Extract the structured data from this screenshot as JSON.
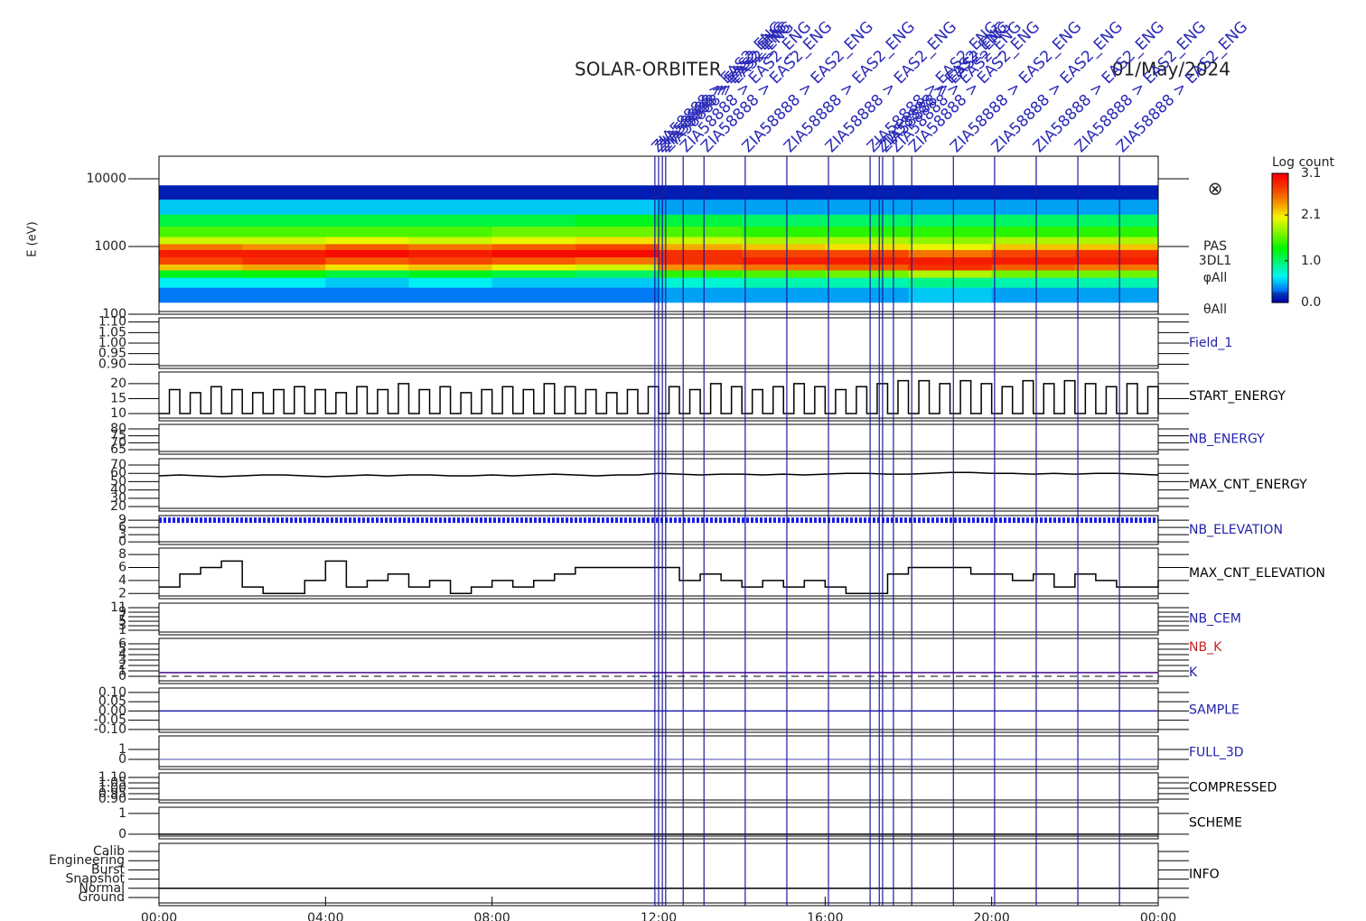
{
  "title": "SOLAR-ORBITER",
  "date": "01/May/2024",
  "events": [
    {
      "x": 11.91,
      "label": "ZIA58888 > EAS2_ENG"
    },
    {
      "x": 12.0,
      "label": "ZIA58888 > EAS2_ENG"
    },
    {
      "x": 12.09,
      "label": "ZIA58888 > EAS2_ENG"
    },
    {
      "x": 12.17,
      "label": "ZIA58888 > EAS2_ENG"
    },
    {
      "x": 12.59,
      "label": "ZIA58888 > EAS2_ENG"
    },
    {
      "x": 13.09,
      "label": "ZIA58888 > EAS2_ENG"
    },
    {
      "x": 14.08,
      "label": "ZIA58888 > EAS2_ENG"
    },
    {
      "x": 15.08,
      "label": "ZIA58888 > EAS2_ENG"
    },
    {
      "x": 16.08,
      "label": "ZIA58888 > EAS2_ENG"
    },
    {
      "x": 17.08,
      "label": "ZIA58888 > EAS2_ENG"
    },
    {
      "x": 17.3,
      "label": "ZIA58888 > EAS2_ENG"
    },
    {
      "x": 17.38,
      "label": "ZIA58888 > EAS2_ENG"
    },
    {
      "x": 17.64,
      "label": "ZIA58888 > EAS2_ENG"
    },
    {
      "x": 18.08,
      "label": "ZIA58888 > EAS2_ENG"
    },
    {
      "x": 19.08,
      "label": "ZIA58888 > EAS2_ENG"
    },
    {
      "x": 20.07,
      "label": "ZIA58888 > EAS2_ENG"
    },
    {
      "x": 21.07,
      "label": "ZIA58888 > EAS2_ENG"
    },
    {
      "x": 22.07,
      "label": "ZIA58888 > EAS2_ENG"
    },
    {
      "x": 23.07,
      "label": "ZIA58888 > EAS2_ENG"
    }
  ],
  "chart_data": [
    {
      "type": "spectrogram",
      "ylabel": "E (eV)",
      "log_y": true,
      "xlim": [
        0,
        24
      ],
      "ylim": [
        100,
        21544
      ],
      "yticks": [
        100,
        1000,
        10000
      ],
      "side_labels": [
        "⊗",
        "PAS",
        "3DL1",
        "φAll",
        "θAll"
      ],
      "colorbar": {
        "title": "Log count",
        "lim": [
          0,
          3.1
        ],
        "ticks": [
          {
            "value": 0,
            "label": "0.0"
          },
          {
            "value": 1,
            "label": "1.0"
          },
          2.1,
          3.1
        ]
      },
      "x": [
        0,
        2,
        4,
        6,
        8,
        10,
        12,
        14,
        16,
        18,
        20,
        22,
        24
      ],
      "y": [
        150,
        250,
        350,
        450,
        550,
        700,
        900,
        1100,
        1400,
        2000,
        3000,
        5000,
        8000
      ],
      "z": [
        [
          0.3,
          0.6,
          1.2,
          2.2,
          2.7,
          2.9,
          2.5,
          1.9,
          1.5,
          1.1,
          0.5,
          0.1
        ],
        [
          0.3,
          0.6,
          1.3,
          2.3,
          2.8,
          2.9,
          2.4,
          1.9,
          1.5,
          1.1,
          0.5,
          0.1
        ],
        [
          0.3,
          0.5,
          1.1,
          2.1,
          2.6,
          3.0,
          2.6,
          2.0,
          1.5,
          1.1,
          0.5,
          0.1
        ],
        [
          0.3,
          0.6,
          1.2,
          2.2,
          2.7,
          2.9,
          2.5,
          1.9,
          1.5,
          1.1,
          0.5,
          0.1
        ],
        [
          0.3,
          0.5,
          1.1,
          2.0,
          2.6,
          3.0,
          2.6,
          2.0,
          1.6,
          1.1,
          0.5,
          0.1
        ],
        [
          0.3,
          0.5,
          1.0,
          1.9,
          2.5,
          3.0,
          2.7,
          2.1,
          1.6,
          1.2,
          0.5,
          0.1
        ],
        [
          0.4,
          0.7,
          1.4,
          2.4,
          2.8,
          2.8,
          2.3,
          1.9,
          1.5,
          1.1,
          0.4,
          0.1
        ],
        [
          0.4,
          0.8,
          1.5,
          2.5,
          2.9,
          2.7,
          2.2,
          1.8,
          1.4,
          1.0,
          0.4,
          0.1
        ],
        [
          0.4,
          0.8,
          1.6,
          2.6,
          2.9,
          2.7,
          2.1,
          1.8,
          1.4,
          1.0,
          0.4,
          0.1
        ],
        [
          0.5,
          0.9,
          1.8,
          2.8,
          2.9,
          2.5,
          2.0,
          1.7,
          1.4,
          1.0,
          0.4,
          0.1
        ],
        [
          0.4,
          0.8,
          1.6,
          2.6,
          2.9,
          2.7,
          2.2,
          1.8,
          1.4,
          1.0,
          0.4,
          0.1
        ],
        [
          0.4,
          0.8,
          1.6,
          2.5,
          2.9,
          2.8,
          2.2,
          1.8,
          1.4,
          1.0,
          0.4,
          0.1
        ]
      ]
    },
    {
      "type": "line",
      "labels": [
        {
          "text": "Field_1",
          "color": "#2222aa"
        }
      ],
      "xlim": [
        0,
        24
      ],
      "ylim": [
        0.88,
        1.12
      ],
      "yticks": [
        {
          "value": 0.9,
          "label": "0.90"
        },
        {
          "value": 0.95,
          "label": "0.95"
        },
        {
          "value": 1,
          "label": "1.00"
        },
        {
          "value": 1.05,
          "label": "1.05"
        },
        {
          "value": 1.1,
          "label": "1.10"
        }
      ],
      "series": []
    },
    {
      "type": "step",
      "labels": [
        {
          "text": "START_ENERGY",
          "color": "#000000"
        }
      ],
      "xlim": [
        0,
        24
      ],
      "ylim": [
        7.6,
        23.9
      ],
      "yticks": [
        10,
        15,
        20
      ],
      "series": [
        {
          "color": "#000000",
          "x": [
            0,
            0.25,
            0.5,
            0.75,
            1,
            1.25,
            1.5,
            1.75,
            2,
            2.25,
            2.5,
            2.75,
            3,
            3.25,
            3.5,
            3.75,
            4,
            4.25,
            4.5,
            4.75,
            5,
            5.25,
            5.5,
            5.75,
            6,
            6.25,
            6.5,
            6.75,
            7,
            7.25,
            7.5,
            7.75,
            8,
            8.25,
            8.5,
            8.75,
            9,
            9.25,
            9.5,
            9.75,
            10,
            10.25,
            10.5,
            10.75,
            11,
            11.25,
            11.5,
            11.75,
            12,
            12.25,
            12.5,
            12.75,
            13,
            13.25,
            13.5,
            13.75,
            14,
            14.25,
            14.5,
            14.75,
            15,
            15.25,
            15.5,
            15.75,
            16,
            16.25,
            16.5,
            16.75,
            17,
            17.25,
            17.5,
            17.75,
            18,
            18.25,
            18.5,
            18.75,
            19,
            19.25,
            19.5,
            19.75,
            20,
            20.25,
            20.5,
            20.75,
            21,
            21.25,
            21.5,
            21.75,
            22,
            22.25,
            22.5,
            22.75,
            23,
            23.25,
            23.5,
            23.75,
            24
          ],
          "values": [
            10,
            18,
            10,
            17,
            10,
            19,
            10,
            18,
            10,
            17,
            10,
            18,
            10,
            19,
            10,
            18,
            10,
            17,
            10,
            19,
            10,
            18,
            10,
            20,
            10,
            18,
            10,
            19,
            10,
            17,
            10,
            18,
            10,
            19,
            10,
            18,
            10,
            20,
            10,
            19,
            10,
            18,
            10,
            17,
            10,
            18,
            10,
            19,
            10,
            19,
            10,
            18,
            10,
            20,
            10,
            19,
            10,
            18,
            10,
            19,
            10,
            20,
            10,
            19,
            10,
            18,
            10,
            19,
            10,
            20,
            10,
            21,
            10,
            21,
            10,
            20,
            10,
            21,
            10,
            20,
            10,
            19,
            10,
            21,
            10,
            20,
            10,
            21,
            10,
            20,
            10,
            19,
            10,
            20,
            10,
            19,
            10
          ]
        }
      ]
    },
    {
      "type": "line",
      "labels": [
        {
          "text": "NB_ENERGY",
          "color": "#2222aa"
        }
      ],
      "xlim": [
        0,
        24
      ],
      "ylim": [
        61.7,
        83.3
      ],
      "yticks": [
        65,
        70,
        75,
        80
      ],
      "series": []
    },
    {
      "type": "line",
      "labels": [
        {
          "text": "MAX_CNT_ENERGY",
          "color": "#000000"
        }
      ],
      "xlim": [
        0,
        24
      ],
      "ylim": [
        14.6,
        77.6
      ],
      "yticks": [
        20,
        30,
        40,
        50,
        60,
        70
      ],
      "series": [
        {
          "color": "#000000",
          "x": [
            0,
            0.5,
            1,
            1.5,
            2,
            2.5,
            3,
            3.5,
            4,
            4.5,
            5,
            5.5,
            6,
            6.5,
            7,
            7.5,
            8,
            8.5,
            9,
            9.5,
            10,
            10.5,
            11,
            11.5,
            12,
            12.5,
            13,
            13.5,
            14,
            14.5,
            15,
            15.5,
            16,
            16.5,
            17,
            17.5,
            18,
            18.5,
            19,
            19.5,
            20,
            20.5,
            21,
            21.5,
            22,
            22.5,
            23,
            23.5,
            24
          ],
          "values": [
            57,
            58,
            57,
            56,
            57,
            58,
            58,
            57,
            56,
            57,
            58,
            57,
            58,
            58,
            57,
            57,
            58,
            57,
            58,
            59,
            58,
            57,
            58,
            58,
            60,
            59,
            58,
            59,
            59,
            58,
            59,
            58,
            59,
            60,
            60,
            59,
            59,
            60,
            61,
            61,
            60,
            60,
            59,
            60,
            59,
            60,
            60,
            59,
            58
          ]
        }
      ]
    },
    {
      "type": "line",
      "labels": [
        {
          "text": "NB_ELEVATION",
          "color": "#2222aa"
        }
      ],
      "xlim": [
        0,
        24
      ],
      "ylim": [
        -1.1,
        10.9
      ],
      "yticks": [
        0,
        3,
        6,
        9
      ],
      "series": [
        {
          "color": "#1a1aee",
          "dash": "dotted",
          "x": [
            0,
            24
          ],
          "values": [
            9,
            9
          ]
        }
      ]
    },
    {
      "type": "step",
      "labels": [
        {
          "text": "MAX_CNT_ELEVATION",
          "color": "#000000"
        }
      ],
      "xlim": [
        0,
        24
      ],
      "ylim": [
        1.2,
        9
      ],
      "yticks": [
        2,
        4,
        6,
        8
      ],
      "series": [
        {
          "color": "#000000",
          "x": [
            0,
            0.5,
            1,
            1.5,
            2,
            2.5,
            3,
            3.5,
            4,
            4.5,
            5,
            5.5,
            6,
            6.5,
            7,
            7.5,
            8,
            8.5,
            9,
            9.5,
            10,
            10.5,
            11,
            11.5,
            12,
            12.5,
            13,
            13.5,
            14,
            14.5,
            15,
            15.5,
            16,
            16.5,
            17,
            17.5,
            18,
            18.5,
            19,
            19.5,
            20,
            20.5,
            21,
            21.5,
            22,
            22.5,
            23,
            23.5,
            24
          ],
          "values": [
            3,
            5,
            6,
            7,
            3,
            2,
            2,
            4,
            7,
            3,
            4,
            5,
            3,
            4,
            2,
            3,
            4,
            3,
            4,
            5,
            6,
            6,
            6,
            6,
            6,
            4,
            5,
            4,
            3,
            4,
            3,
            4,
            3,
            2,
            2,
            5,
            6,
            6,
            6,
            5,
            5,
            4,
            5,
            3,
            5,
            4,
            3,
            3,
            4
          ]
        }
      ]
    },
    {
      "type": "line",
      "labels": [
        {
          "text": "NB_CEM",
          "color": "#2222aa"
        }
      ],
      "xlim": [
        0,
        24
      ],
      "ylim": [
        -1,
        13
      ],
      "yticks": [
        1,
        3,
        5,
        7,
        9,
        11
      ],
      "series": []
    },
    {
      "type": "line",
      "labels": [
        {
          "text": "NB_K",
          "color": "#cc2222"
        },
        {
          "text": "K",
          "color": "#2222aa"
        }
      ],
      "xlim": [
        0,
        24
      ],
      "ylim": [
        -1.33,
        7
      ],
      "yticks": [
        0,
        1,
        2,
        3,
        4,
        5,
        6
      ],
      "zero_line": true,
      "series": [
        {
          "color": "#cc2222",
          "x": [
            0,
            24
          ],
          "values": [
            0.7,
            0.7
          ]
        },
        {
          "color": "#5522aa",
          "x": [
            0,
            24
          ],
          "values": [
            0.7,
            0.7
          ]
        }
      ]
    },
    {
      "type": "line",
      "labels": [
        {
          "text": "SAMPLE",
          "color": "#2222aa"
        }
      ],
      "xlim": [
        0,
        24
      ],
      "ylim": [
        -0.115,
        0.124
      ],
      "yticks": [
        {
          "value": -0.1,
          "label": "-0.10"
        },
        {
          "value": -0.05,
          "label": "-0.05"
        },
        {
          "value": 0,
          "label": "0.00"
        },
        {
          "value": 0.05,
          "label": "0.05"
        },
        {
          "value": 0.1,
          "label": "0.10"
        }
      ],
      "series": [
        {
          "color": "#2222aa",
          "x": [
            0,
            24
          ],
          "values": [
            0,
            0
          ]
        }
      ]
    },
    {
      "type": "line",
      "labels": [
        {
          "text": "FULL_3D",
          "color": "#2222aa"
        }
      ],
      "xlim": [
        0,
        24
      ],
      "ylim": [
        -1,
        2.36
      ],
      "yticks": [
        0,
        1
      ],
      "series": [
        {
          "color": "#8888cc",
          "x": [
            0,
            24
          ],
          "values": [
            0,
            0
          ]
        }
      ]
    },
    {
      "type": "line",
      "labels": [
        {
          "text": "COMPRESSED",
          "color": "#000000"
        }
      ],
      "xlim": [
        0,
        24
      ],
      "ylim": [
        0.867,
        1.142
      ],
      "yticks": [
        {
          "value": 0.9,
          "label": "0.90"
        },
        {
          "value": 0.95,
          "label": "0.95"
        },
        {
          "value": 1,
          "label": "1.00"
        },
        {
          "value": 1.05,
          "label": "1.05"
        },
        {
          "value": 1.1,
          "label": "1.10"
        }
      ],
      "series": []
    },
    {
      "type": "line",
      "labels": [
        {
          "text": "SCHEME",
          "color": "#000000"
        }
      ],
      "xlim": [
        0,
        24
      ],
      "ylim": [
        -0.22,
        1.3
      ],
      "yticks": [
        0,
        1
      ],
      "series": [
        {
          "color": "#000000",
          "x": [
            0,
            24
          ],
          "values": [
            0,
            0
          ]
        }
      ]
    },
    {
      "type": "category",
      "labels": [
        {
          "text": "INFO",
          "color": "#000000"
        }
      ],
      "xlim": [
        0,
        24
      ],
      "categories": [
        "Ground",
        "Normal",
        "Snapshot",
        "Burst",
        "Engineering",
        "Calib"
      ],
      "xticks": [
        {
          "value": 0,
          "label": "00:00"
        },
        {
          "value": 4,
          "label": "04:00"
        },
        {
          "value": 8,
          "label": "08:00"
        },
        {
          "value": 12,
          "label": "12:00"
        },
        {
          "value": 16,
          "label": "16:00"
        },
        {
          "value": 20,
          "label": "20:00"
        },
        {
          "value": 24,
          "label": "00:00"
        }
      ],
      "series": [
        {
          "color": "#000000",
          "x": [
            0,
            24
          ],
          "values": [
            "Normal",
            "Normal"
          ]
        }
      ]
    }
  ]
}
